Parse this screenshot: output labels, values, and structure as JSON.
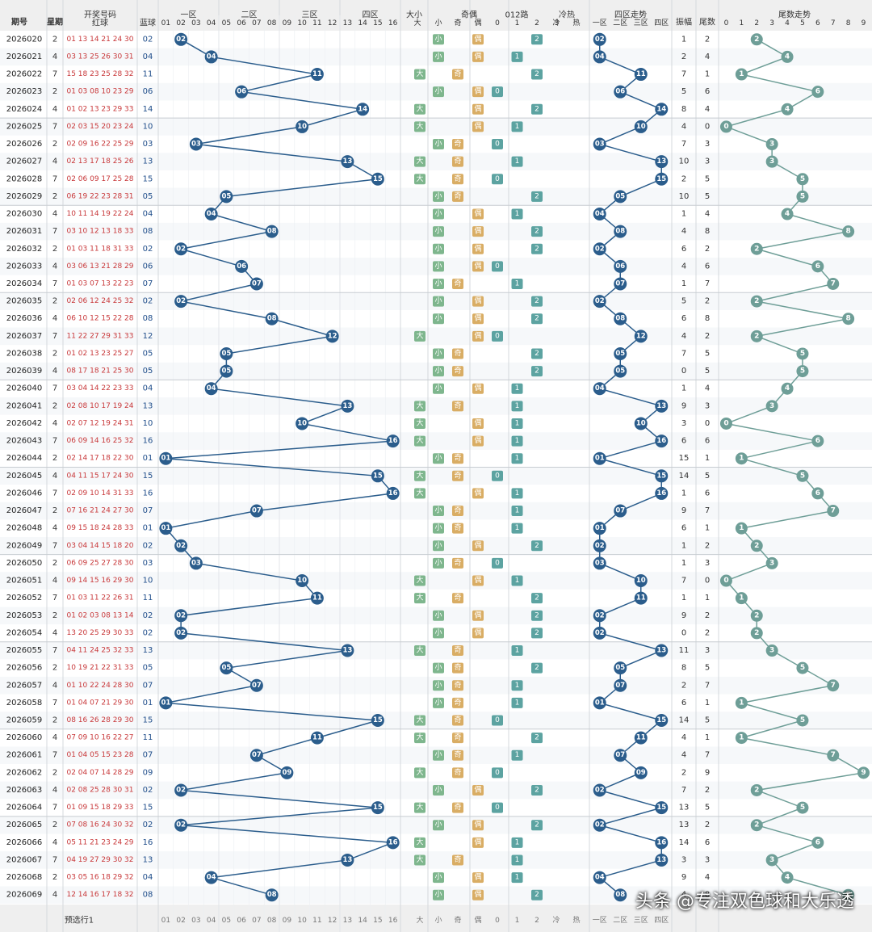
{
  "header": {
    "issue": "期号",
    "weekday": "星期",
    "draw": "开奖号码",
    "red": "红球",
    "blue": "蓝球",
    "zone1": "一区",
    "zone2": "二区",
    "zone3": "三区",
    "zone4": "四区",
    "size": "大小",
    "big": "大",
    "small": "小",
    "parity": "奇偶",
    "odd": "奇",
    "even": "偶",
    "road012": "012路",
    "coldhot": "冷热",
    "cold": "冷",
    "hot": "热",
    "zoneTrend": "四区走势",
    "zoneNames": [
      "一区",
      "二区",
      "三区",
      "四区"
    ],
    "amplitude": "振幅",
    "tail": "尾数",
    "tailTrend": "尾数走势",
    "tailDigits": [
      "0",
      "1",
      "2",
      "3",
      "4",
      "5",
      "6",
      "7",
      "8",
      "9"
    ]
  },
  "footer": {
    "label": "预选行1"
  },
  "watermark": "头条 @专注双色球和大乐透",
  "colors": {
    "blueBall": "#2b5d8c",
    "tealBall": "#6e9e97",
    "redText": "#c8383a",
    "headerBg": "#efefef",
    "badgeGreen": "#7eb68d",
    "badgeOrange": "#d9ad64",
    "badgeTeal": "#5ca3a1"
  },
  "chart_data": {
    "type": "table",
    "series": [
      {
        "name": "蓝球",
        "values": [
          2,
          4,
          11,
          6,
          14,
          10,
          3,
          13,
          15,
          5,
          4,
          8,
          2,
          6,
          7,
          2,
          8,
          12,
          5,
          5,
          4,
          13,
          10,
          16,
          1,
          15,
          16,
          7,
          1,
          2,
          3,
          10,
          11,
          2,
          2,
          13,
          5,
          7,
          1,
          15,
          11,
          7,
          9,
          2,
          15,
          2,
          16,
          13,
          4,
          8
        ]
      }
    ],
    "rows": [
      {
        "issue": "2026020",
        "week": "2",
        "red": "01 13 14 21 24 30",
        "blue": "02",
        "amp": "1",
        "tail": "2"
      },
      {
        "issue": "2026021",
        "week": "4",
        "red": "03 13 25 26 30 31",
        "blue": "04",
        "amp": "2",
        "tail": "4"
      },
      {
        "issue": "2026022",
        "week": "7",
        "red": "15 18 23 25 28 32",
        "blue": "11",
        "amp": "7",
        "tail": "1"
      },
      {
        "issue": "2026023",
        "week": "2",
        "red": "01 03 08 10 23 29",
        "blue": "06",
        "amp": "5",
        "tail": "6"
      },
      {
        "issue": "2026024",
        "week": "4",
        "red": "01 02 13 23 29 33",
        "blue": "14",
        "amp": "8",
        "tail": "4"
      },
      {
        "issue": "2026025",
        "week": "7",
        "red": "02 03 15 20 23 24",
        "blue": "10",
        "amp": "4",
        "tail": "0"
      },
      {
        "issue": "2026026",
        "week": "2",
        "red": "02 09 16 22 25 29",
        "blue": "03",
        "amp": "7",
        "tail": "3"
      },
      {
        "issue": "2026027",
        "week": "4",
        "red": "02 13 17 18 25 26",
        "blue": "13",
        "amp": "10",
        "tail": "3"
      },
      {
        "issue": "2026028",
        "week": "7",
        "red": "02 06 09 17 25 28",
        "blue": "15",
        "amp": "2",
        "tail": "5"
      },
      {
        "issue": "2026029",
        "week": "2",
        "red": "06 19 22 23 28 31",
        "blue": "05",
        "amp": "10",
        "tail": "5"
      },
      {
        "issue": "2026030",
        "week": "4",
        "red": "10 11 14 19 22 24",
        "blue": "04",
        "amp": "1",
        "tail": "4"
      },
      {
        "issue": "2026031",
        "week": "7",
        "red": "03 10 12 13 18 33",
        "blue": "08",
        "amp": "4",
        "tail": "8"
      },
      {
        "issue": "2026032",
        "week": "2",
        "red": "01 03 11 18 31 33",
        "blue": "02",
        "amp": "6",
        "tail": "2"
      },
      {
        "issue": "2026033",
        "week": "4",
        "red": "03 06 13 21 28 29",
        "blue": "06",
        "amp": "4",
        "tail": "6"
      },
      {
        "issue": "2026034",
        "week": "7",
        "red": "01 03 07 13 22 23",
        "blue": "07",
        "amp": "1",
        "tail": "7"
      },
      {
        "issue": "2026035",
        "week": "2",
        "red": "02 06 12 24 25 32",
        "blue": "02",
        "amp": "5",
        "tail": "2"
      },
      {
        "issue": "2026036",
        "week": "4",
        "red": "06 10 12 15 22 28",
        "blue": "08",
        "amp": "6",
        "tail": "8"
      },
      {
        "issue": "2026037",
        "week": "7",
        "red": "11 22 27 29 31 33",
        "blue": "12",
        "amp": "4",
        "tail": "2"
      },
      {
        "issue": "2026038",
        "week": "2",
        "red": "01 02 13 23 25 27",
        "blue": "05",
        "amp": "7",
        "tail": "5"
      },
      {
        "issue": "2026039",
        "week": "4",
        "red": "08 17 18 21 25 30",
        "blue": "05",
        "amp": "0",
        "tail": "5"
      },
      {
        "issue": "2026040",
        "week": "7",
        "red": "03 04 14 22 23 33",
        "blue": "04",
        "amp": "1",
        "tail": "4"
      },
      {
        "issue": "2026041",
        "week": "2",
        "red": "02 08 10 17 19 24",
        "blue": "13",
        "amp": "9",
        "tail": "3"
      },
      {
        "issue": "2026042",
        "week": "4",
        "red": "02 07 12 19 24 31",
        "blue": "10",
        "amp": "3",
        "tail": "0"
      },
      {
        "issue": "2026043",
        "week": "7",
        "red": "06 09 14 16 25 32",
        "blue": "16",
        "amp": "6",
        "tail": "6"
      },
      {
        "issue": "2026044",
        "week": "2",
        "red": "02 14 17 18 22 30",
        "blue": "01",
        "amp": "15",
        "tail": "1"
      },
      {
        "issue": "2026045",
        "week": "4",
        "red": "04 11 15 17 24 30",
        "blue": "15",
        "amp": "14",
        "tail": "5"
      },
      {
        "issue": "2026046",
        "week": "7",
        "red": "02 09 10 14 31 33",
        "blue": "16",
        "amp": "1",
        "tail": "6"
      },
      {
        "issue": "2026047",
        "week": "2",
        "red": "07 16 21 24 27 30",
        "blue": "07",
        "amp": "9",
        "tail": "7"
      },
      {
        "issue": "2026048",
        "week": "4",
        "red": "09 15 18 24 28 33",
        "blue": "01",
        "amp": "6",
        "tail": "1"
      },
      {
        "issue": "2026049",
        "week": "7",
        "red": "03 04 14 15 18 20",
        "blue": "02",
        "amp": "1",
        "tail": "2"
      },
      {
        "issue": "2026050",
        "week": "2",
        "red": "06 09 25 27 28 30",
        "blue": "03",
        "amp": "1",
        "tail": "3"
      },
      {
        "issue": "2026051",
        "week": "4",
        "red": "09 14 15 16 29 30",
        "blue": "10",
        "amp": "7",
        "tail": "0"
      },
      {
        "issue": "2026052",
        "week": "7",
        "red": "01 03 11 22 26 31",
        "blue": "11",
        "amp": "1",
        "tail": "1"
      },
      {
        "issue": "2026053",
        "week": "2",
        "red": "01 02 03 08 13 14",
        "blue": "02",
        "amp": "9",
        "tail": "2"
      },
      {
        "issue": "2026054",
        "week": "4",
        "red": "13 20 25 29 30 33",
        "blue": "02",
        "amp": "0",
        "tail": "2"
      },
      {
        "issue": "2026055",
        "week": "7",
        "red": "04 11 24 25 32 33",
        "blue": "13",
        "amp": "11",
        "tail": "3"
      },
      {
        "issue": "2026056",
        "week": "2",
        "red": "10 19 21 22 31 33",
        "blue": "05",
        "amp": "8",
        "tail": "5"
      },
      {
        "issue": "2026057",
        "week": "4",
        "red": "01 10 22 24 28 30",
        "blue": "07",
        "amp": "2",
        "tail": "7"
      },
      {
        "issue": "2026058",
        "week": "7",
        "red": "01 04 07 21 29 30",
        "blue": "01",
        "amp": "6",
        "tail": "1"
      },
      {
        "issue": "2026059",
        "week": "2",
        "red": "08 16 26 28 29 30",
        "blue": "15",
        "amp": "14",
        "tail": "5"
      },
      {
        "issue": "2026060",
        "week": "4",
        "red": "07 09 10 16 22 27",
        "blue": "11",
        "amp": "4",
        "tail": "1"
      },
      {
        "issue": "2026061",
        "week": "7",
        "red": "01 04 05 15 23 28",
        "blue": "07",
        "amp": "4",
        "tail": "7"
      },
      {
        "issue": "2026062",
        "week": "2",
        "red": "02 04 07 14 28 29",
        "blue": "09",
        "amp": "2",
        "tail": "9"
      },
      {
        "issue": "2026063",
        "week": "4",
        "red": "02 08 25 28 30 31",
        "blue": "02",
        "amp": "7",
        "tail": "2"
      },
      {
        "issue": "2026064",
        "week": "7",
        "red": "01 09 15 18 29 33",
        "blue": "15",
        "amp": "13",
        "tail": "5"
      },
      {
        "issue": "2026065",
        "week": "2",
        "red": "07 08 16 24 30 32",
        "blue": "02",
        "amp": "13",
        "tail": "2"
      },
      {
        "issue": "2026066",
        "week": "4",
        "red": "05 11 21 23 24 29",
        "blue": "16",
        "amp": "14",
        "tail": "6"
      },
      {
        "issue": "2026067",
        "week": "7",
        "red": "04 19 27 29 30 32",
        "blue": "13",
        "amp": "3",
        "tail": "3"
      },
      {
        "issue": "2026068",
        "week": "2",
        "red": "03 05 16 18 29 32",
        "blue": "04",
        "amp": "9",
        "tail": "4"
      },
      {
        "issue": "2026069",
        "week": "4",
        "red": "12 14 16 17 18 32",
        "blue": "08",
        "amp": "4",
        "tail": "8"
      }
    ]
  }
}
